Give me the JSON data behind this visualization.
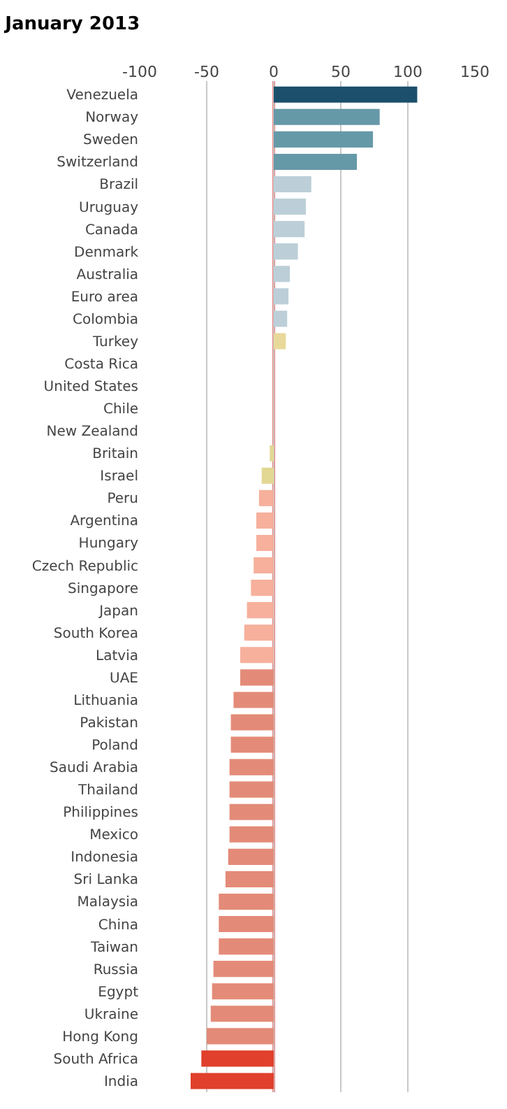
{
  "chart_data": {
    "type": "bar",
    "orientation": "horizontal",
    "title": "January 2013",
    "categories": [
      "Venezuela",
      "Norway",
      "Sweden",
      "Switzerland",
      "Brazil",
      "Uruguay",
      "Canada",
      "Denmark",
      "Australia",
      "Euro area",
      "Colombia",
      "Turkey",
      "Costa Rica",
      "United States",
      "Chile",
      "New Zealand",
      "Britain",
      "Israel",
      "Peru",
      "Argentina",
      "Hungary",
      "Czech Republic",
      "Singapore",
      "Japan",
      "South Korea",
      "Latvia",
      "UAE",
      "Lithuania",
      "Pakistan",
      "Poland",
      "Saudi Arabia",
      "Thailand",
      "Philippines",
      "Mexico",
      "Indonesia",
      "Sri Lanka",
      "Malaysia",
      "China",
      "Taiwan",
      "Russia",
      "Egypt",
      "Ukraine",
      "Hong Kong",
      "South Africa",
      "India"
    ],
    "values": [
      107,
      79,
      74,
      62,
      28,
      24,
      23,
      18,
      12,
      11,
      10,
      9,
      0,
      0,
      0,
      0,
      -3,
      -9,
      -11,
      -13,
      -13,
      -15,
      -17,
      -20,
      -22,
      -25,
      -25,
      -30,
      -32,
      -32,
      -33,
      -33,
      -33,
      -33,
      -34,
      -36,
      -41,
      -41,
      -41,
      -45,
      -46,
      -47,
      -50,
      -54,
      -62
    ],
    "colors": [
      "#1b4f6b",
      "#6699a8",
      "#6699a8",
      "#6699a8",
      "#bccfd8",
      "#bccfd8",
      "#bccfd8",
      "#bccfd8",
      "#bccfd8",
      "#bccfd8",
      "#bccfd8",
      "#e8d99a",
      null,
      null,
      null,
      null,
      "#e2d894",
      "#e2d894",
      "#f6b09c",
      "#f6b09c",
      "#f6b09c",
      "#f6b09c",
      "#f6b09c",
      "#f6b09c",
      "#f6b09c",
      "#f6b09c",
      "#e38b78",
      "#e38b78",
      "#e38b78",
      "#e38b78",
      "#e38b78",
      "#e38b78",
      "#e38b78",
      "#e38b78",
      "#e38b78",
      "#e38b78",
      "#e38b78",
      "#e38b78",
      "#e38b78",
      "#e38b78",
      "#e38b78",
      "#e38b78",
      "#e38b78",
      "#e0402c",
      "#e0402c"
    ],
    "xlim": [
      -100,
      150
    ],
    "xticks": [
      -100,
      -50,
      0,
      50,
      100,
      150
    ],
    "grid": "x",
    "ref_lines": [
      {
        "axis": "x",
        "value": 0,
        "color": "#e00000"
      }
    ]
  }
}
